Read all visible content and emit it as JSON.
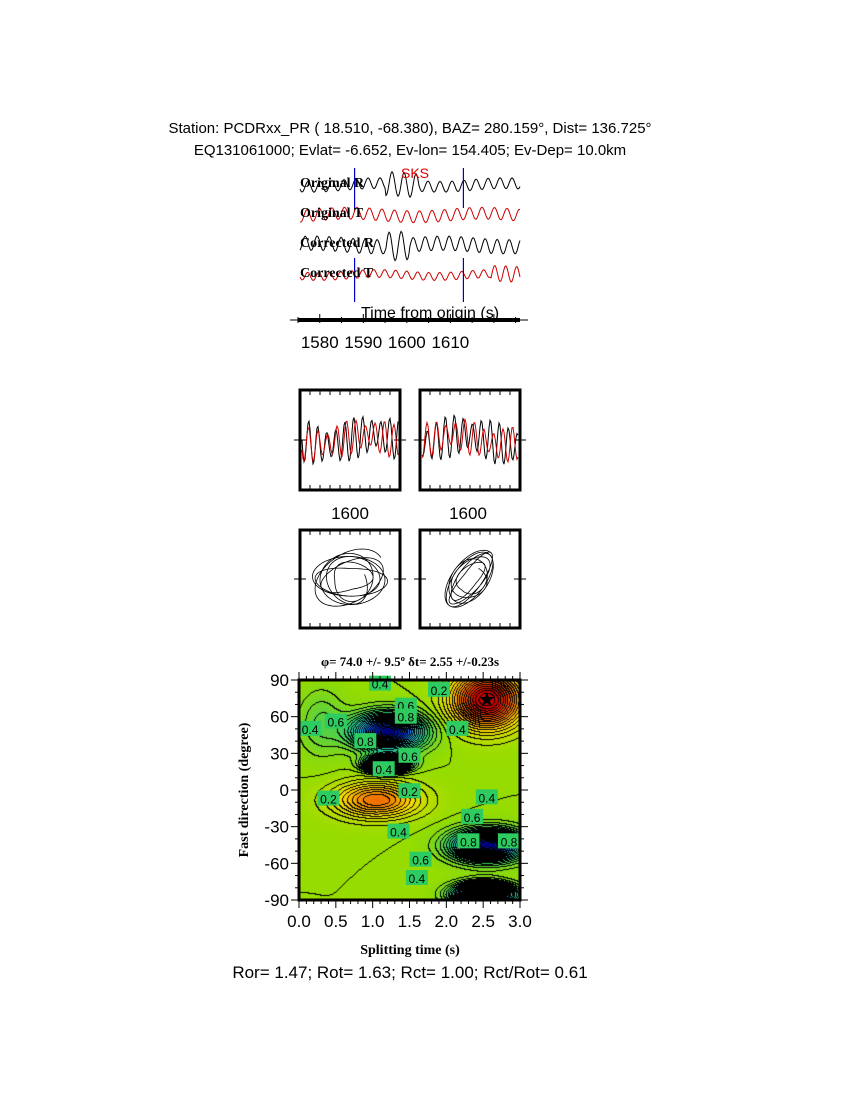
{
  "header": {
    "line1": "Station: PCDRxx_PR (  18.510,  -68.380), BAZ=  280.159°, Dist=  136.725°",
    "line2": "EQ131061000; Evlat=  -6.652, Ev-lon= 154.405; Ev-Dep= 10.0km"
  },
  "colors": {
    "radial": "#000000",
    "transverse": "#cc0000",
    "window_marker": "#0000cc",
    "phase_label": "#dd0000"
  },
  "chart_data": [
    {
      "type": "line",
      "title": "",
      "phase_label": "SKS",
      "trace_labels": [
        "Original R",
        "Original T",
        "Corrected R",
        "Corrected T"
      ],
      "xlabel": "Time from origin (s)",
      "xticks": [
        1580,
        1590,
        1600,
        1610
      ],
      "xlim": [
        1575,
        1626
      ],
      "window": [
        1588,
        1613
      ]
    },
    {
      "type": "line",
      "title": "",
      "panels": [
        "original",
        "corrected"
      ],
      "xtick_label": "1600"
    },
    {
      "type": "scatter",
      "title": "",
      "panels": [
        "original particle motion",
        "corrected particle motion"
      ]
    },
    {
      "type": "heatmap",
      "title": "φ= 74.0 +/- 9.5º δt= 2.55 +/-0.23s",
      "xlabel": "Splitting time (s)",
      "ylabel": "Fast direction (degree)",
      "xlim": [
        0,
        3
      ],
      "ylim": [
        -90,
        90
      ],
      "xticks": [
        "0.0",
        "0.5",
        "1.0",
        "1.5",
        "2.0",
        "2.5",
        "3.0"
      ],
      "yticks": [
        "90",
        "60",
        "30",
        "0",
        "-30",
        "-60",
        "-90"
      ],
      "best": {
        "dt": 2.55,
        "phi": 74.0
      },
      "contour_labels": [
        {
          "t": "0.4",
          "x": 1.1,
          "y": 87
        },
        {
          "t": "0.6",
          "x": 1.45,
          "y": 69
        },
        {
          "t": "0.8",
          "x": 1.45,
          "y": 60
        },
        {
          "t": "0.6",
          "x": 0.5,
          "y": 56
        },
        {
          "t": "0.4",
          "x": 0.15,
          "y": 50
        },
        {
          "t": "0.8",
          "x": 0.9,
          "y": 40
        },
        {
          "t": "0.6",
          "x": 1.5,
          "y": 28
        },
        {
          "t": "0.4",
          "x": 1.15,
          "y": 17
        },
        {
          "t": "0.2",
          "x": 1.9,
          "y": 82
        },
        {
          "t": "0.4",
          "x": 2.15,
          "y": 50
        },
        {
          "t": "0.2",
          "x": 0.4,
          "y": -7
        },
        {
          "t": "0.2",
          "x": 1.5,
          "y": -1
        },
        {
          "t": "0.4",
          "x": 2.55,
          "y": -6
        },
        {
          "t": "0.6",
          "x": 2.35,
          "y": -22
        },
        {
          "t": "0.4",
          "x": 1.35,
          "y": -34
        },
        {
          "t": "0.8",
          "x": 2.3,
          "y": -42
        },
        {
          "t": "0.8",
          "x": 2.85,
          "y": -42
        },
        {
          "t": "0.6",
          "x": 1.65,
          "y": -57
        },
        {
          "t": "0.4",
          "x": 1.6,
          "y": -72
        }
      ]
    }
  ],
  "footer": "Ror= 1.47; Rot= 1.63; Rct= 1.00; Rct/Rot= 0.61"
}
